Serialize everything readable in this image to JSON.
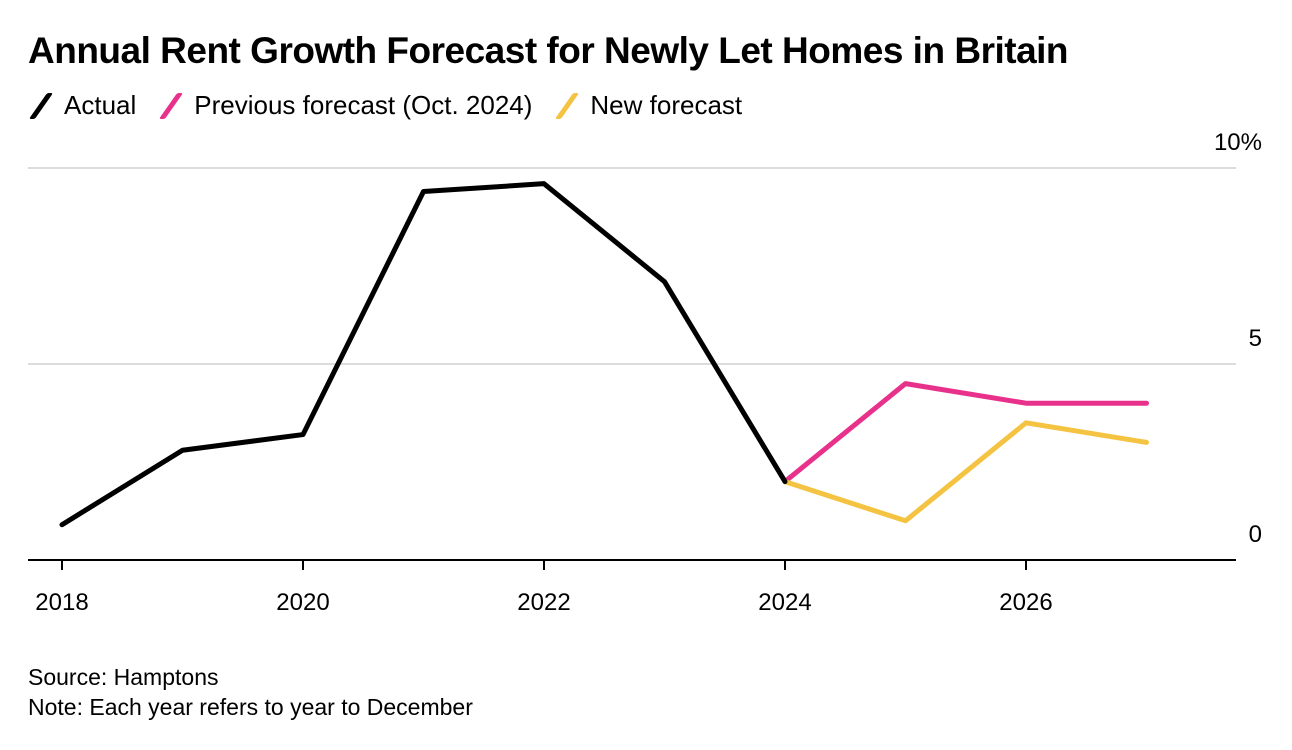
{
  "chart_data": {
    "type": "line",
    "title": "Annual Rent Growth Forecast for Newly Let Homes in Britain",
    "xlabel": "",
    "ylabel": "",
    "ylim": [
      0,
      10
    ],
    "xlim": [
      2018,
      2027.7
    ],
    "x_ticks": [
      "2018",
      "2020",
      "2022",
      "2024",
      "2026"
    ],
    "y_ticks": [
      "0",
      "5",
      "10%"
    ],
    "y_tick_values": [
      0,
      5,
      10
    ],
    "grid": true,
    "legend_position": "top-left",
    "series": [
      {
        "name": "Actual",
        "color": "#000000",
        "x": [
          2018,
          2019,
          2020,
          2021,
          2022,
          2023,
          2024
        ],
        "values": [
          0.9,
          2.8,
          3.2,
          9.4,
          9.6,
          7.1,
          2.0
        ]
      },
      {
        "name": "Previous forecast (Oct. 2024)",
        "color": "#e8318a",
        "x": [
          2024,
          2025,
          2026,
          2027
        ],
        "values": [
          2.0,
          4.5,
          4.0,
          4.0
        ]
      },
      {
        "name": "New forecast",
        "color": "#f5c342",
        "x": [
          2024,
          2025,
          2026,
          2027
        ],
        "values": [
          2.0,
          1.0,
          3.5,
          3.0
        ]
      }
    ]
  },
  "source": "Source: Hamptons",
  "note": "Note: Each year refers to year to December"
}
